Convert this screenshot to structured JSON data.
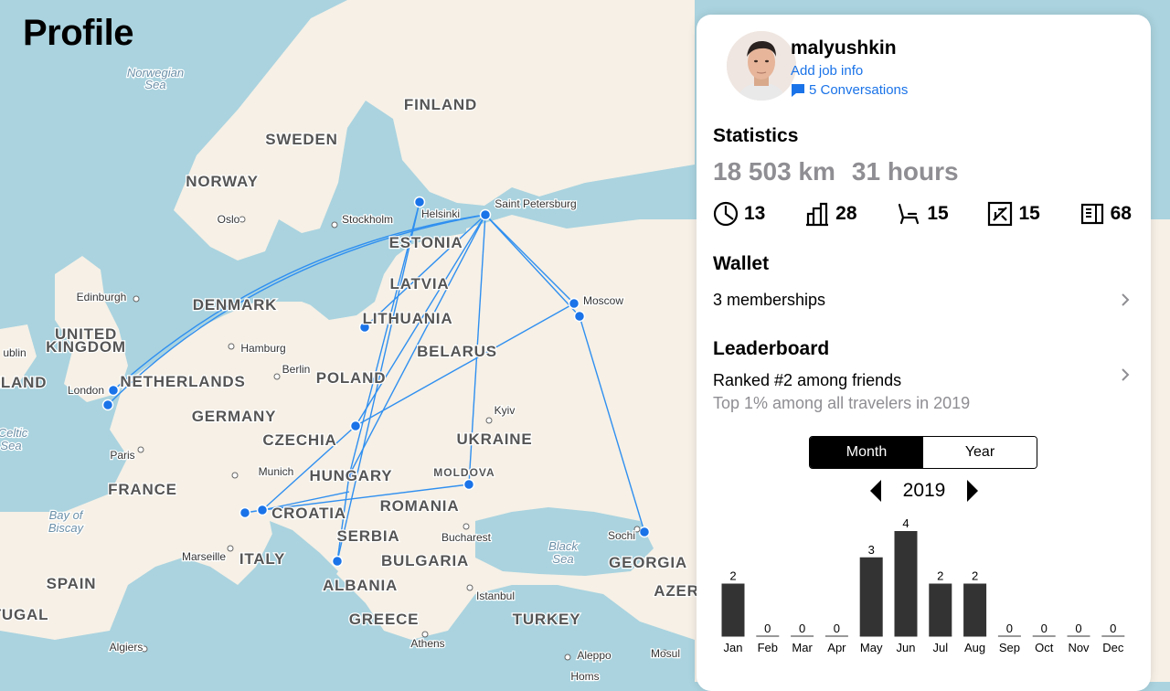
{
  "header": {
    "title": "Profile"
  },
  "map": {
    "labels": [
      {
        "text": "Norwegian",
        "kind": "sea"
      },
      {
        "text": "Sea",
        "kind": "sea"
      },
      {
        "text": "FINLAND",
        "kind": "country"
      },
      {
        "text": "SWEDEN",
        "kind": "country"
      },
      {
        "text": "NORWAY",
        "kind": "country"
      },
      {
        "text": "Oslo",
        "kind": "city"
      },
      {
        "text": "Stockholm",
        "kind": "city"
      },
      {
        "text": "Helsinki",
        "kind": "city"
      },
      {
        "text": "Saint Petersburg",
        "kind": "city"
      },
      {
        "text": "ESTONIA",
        "kind": "country"
      },
      {
        "text": "LATVIA",
        "kind": "country"
      },
      {
        "text": "LITHUANIA",
        "kind": "country"
      },
      {
        "text": "Moscow",
        "kind": "city"
      },
      {
        "text": "Edinburgh",
        "kind": "city"
      },
      {
        "text": "DENMARK",
        "kind": "country"
      },
      {
        "text": "UNITED",
        "kind": "country"
      },
      {
        "text": "KINGDOM",
        "kind": "country"
      },
      {
        "text": "ublin",
        "kind": "city"
      },
      {
        "text": "ELAND",
        "kind": "country"
      },
      {
        "text": "Hamburg",
        "kind": "city"
      },
      {
        "text": "BELARUS",
        "kind": "country"
      },
      {
        "text": "London",
        "kind": "city"
      },
      {
        "text": "NETHERLANDS",
        "kind": "country"
      },
      {
        "text": "Berlin",
        "kind": "city"
      },
      {
        "text": "POLAND",
        "kind": "country"
      },
      {
        "text": "Celtic",
        "kind": "sea"
      },
      {
        "text": "Sea",
        "kind": "sea"
      },
      {
        "text": "GERMANY",
        "kind": "country"
      },
      {
        "text": "Kyiv",
        "kind": "city"
      },
      {
        "text": "CZECHIA",
        "kind": "country"
      },
      {
        "text": "UKRAINE",
        "kind": "country"
      },
      {
        "text": "Paris",
        "kind": "city"
      },
      {
        "text": "Munich",
        "kind": "city"
      },
      {
        "text": "HUNGARY",
        "kind": "country"
      },
      {
        "text": "MOLDOVA",
        "kind": "country-small"
      },
      {
        "text": "FRANCE",
        "kind": "country"
      },
      {
        "text": "CROATIA",
        "kind": "country"
      },
      {
        "text": "ROMANIA",
        "kind": "country"
      },
      {
        "text": "Bay of",
        "kind": "sea"
      },
      {
        "text": "Biscay",
        "kind": "sea"
      },
      {
        "text": "SERBIA",
        "kind": "country"
      },
      {
        "text": "Bucharest",
        "kind": "city"
      },
      {
        "text": "Sochi",
        "kind": "city"
      },
      {
        "text": "Black",
        "kind": "sea"
      },
      {
        "text": "Sea",
        "kind": "sea"
      },
      {
        "text": "Marseille",
        "kind": "city"
      },
      {
        "text": "ITALY",
        "kind": "country"
      },
      {
        "text": "BULGARIA",
        "kind": "country"
      },
      {
        "text": "GEORGIA",
        "kind": "country"
      },
      {
        "text": "SPAIN",
        "kind": "country"
      },
      {
        "text": "AZER",
        "kind": "country"
      },
      {
        "text": "ALBANIA",
        "kind": "country"
      },
      {
        "text": "Istanbul",
        "kind": "city"
      },
      {
        "text": "TUGAL",
        "kind": "country"
      },
      {
        "text": "GREECE",
        "kind": "country"
      },
      {
        "text": "TURKEY",
        "kind": "country"
      },
      {
        "text": "Algiers",
        "kind": "city"
      },
      {
        "text": "Athens",
        "kind": "city"
      },
      {
        "text": "Aleppo",
        "kind": "city"
      },
      {
        "text": "Mosul",
        "kind": "city"
      },
      {
        "text": "Homs",
        "kind": "city"
      }
    ]
  },
  "profile": {
    "username": "malyushkin",
    "job_link": "Add job info",
    "conversations": "5 Conversations"
  },
  "statistics": {
    "title": "Statistics",
    "distance": "18 503 km",
    "time": "31 hours",
    "counts": [
      {
        "icon": "location-pin-clock-icon",
        "value": "13"
      },
      {
        "icon": "city-buildings-icon",
        "value": "28"
      },
      {
        "icon": "seat-icon",
        "value": "15"
      },
      {
        "icon": "airport-plane-icon",
        "value": "15"
      },
      {
        "icon": "boarding-pass-icon",
        "value": "68"
      }
    ]
  },
  "wallet": {
    "title": "Wallet",
    "memberships": "3 memberships"
  },
  "leaderboard": {
    "title": "Leaderboard",
    "rank": "Ranked #2 among friends",
    "percentile": "Top 1% among all travelers in 2019"
  },
  "chart_controls": {
    "month_label": "Month",
    "year_label": "Year",
    "year": "2019"
  },
  "chart_data": {
    "type": "bar",
    "categories": [
      "Jan",
      "Feb",
      "Mar",
      "Apr",
      "May",
      "Jun",
      "Jul",
      "Aug",
      "Sep",
      "Oct",
      "Nov",
      "Dec"
    ],
    "values": [
      2,
      0,
      0,
      0,
      3,
      4,
      2,
      2,
      0,
      0,
      0,
      0
    ],
    "title": "",
    "xlabel": "",
    "ylabel": "",
    "ylim": [
      0,
      4
    ],
    "data_labels": true,
    "grid": false,
    "color": "#333333"
  },
  "colors": {
    "accent": "#1a73e8",
    "route": "#2f8ff0",
    "land": "#f6f0e6",
    "water": "#aad3df"
  }
}
